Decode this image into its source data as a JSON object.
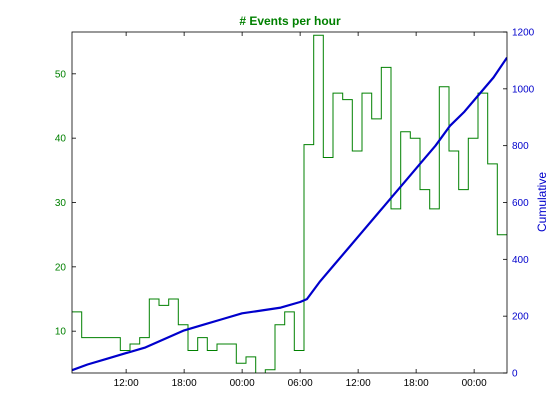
{
  "chart_data": {
    "type": "line",
    "title": "# Events per hour",
    "xlabel": "",
    "ylabel_left": "",
    "ylabel_right": "Cumulative",
    "x_tick_labels": [
      "12:00",
      "18:00",
      "00:00",
      "06:00",
      "12:00",
      "18:00",
      "00:00"
    ],
    "x_tick_hours": [
      12,
      18,
      24,
      30,
      36,
      42,
      48
    ],
    "xlim_hours": [
      6.4,
      51.4
    ],
    "ylim_left": [
      3.5,
      56.5
    ],
    "ylim_right": [
      0,
      1200
    ],
    "y_ticks_left": [
      10,
      20,
      30,
      40,
      50
    ],
    "y_ticks_right": [
      0,
      200,
      400,
      600,
      800,
      1000,
      1200
    ],
    "grid": false,
    "colors": {
      "hourly": "#008000",
      "cumulative": "#0000cc",
      "axis": "#000000"
    },
    "series": [
      {
        "name": "",
        "axis": "left",
        "style": "step",
        "x_start_hours": [
          6.4,
          7.4,
          8.4,
          9.4,
          10.4,
          11.4,
          12.4,
          13.4,
          14.4,
          15.4,
          16.4,
          17.4,
          18.4,
          19.4,
          20.4,
          21.4,
          22.4,
          23.4,
          24.4,
          25.4,
          26.4,
          27.4,
          28.4,
          29.4,
          30.4,
          31.4,
          32.4,
          33.4,
          34.4,
          35.4,
          36.4,
          37.4,
          38.4,
          39.4,
          40.4,
          41.4,
          42.4,
          43.4,
          44.4,
          45.4,
          46.4,
          47.4,
          48.4,
          49.4,
          50.4
        ],
        "values": [
          13,
          9,
          9,
          9,
          9,
          7,
          8,
          9,
          15,
          14,
          15,
          11,
          7,
          9,
          7,
          8,
          8,
          5,
          6,
          1,
          4,
          11,
          13,
          7,
          39,
          56,
          37,
          47,
          46,
          38,
          47,
          43,
          51,
          29,
          41,
          40,
          32,
          29,
          48,
          38,
          32,
          40,
          47,
          36,
          25
        ]
      },
      {
        "name": "",
        "axis": "right",
        "style": "line",
        "x_hours": [
          6.4,
          8,
          10,
          12,
          14,
          16,
          18,
          20,
          22,
          24,
          26,
          28,
          30,
          30.7,
          32,
          33.5,
          35,
          36.5,
          38,
          39.5,
          41,
          42.5,
          44,
          45.5,
          47,
          48.5,
          50,
          51.4
        ],
        "values": [
          10,
          30,
          50,
          70,
          90,
          120,
          150,
          170,
          190,
          210,
          220,
          230,
          250,
          260,
          320,
          380,
          440,
          500,
          560,
          620,
          680,
          740,
          800,
          870,
          920,
          980,
          1040,
          1110
        ]
      }
    ]
  }
}
